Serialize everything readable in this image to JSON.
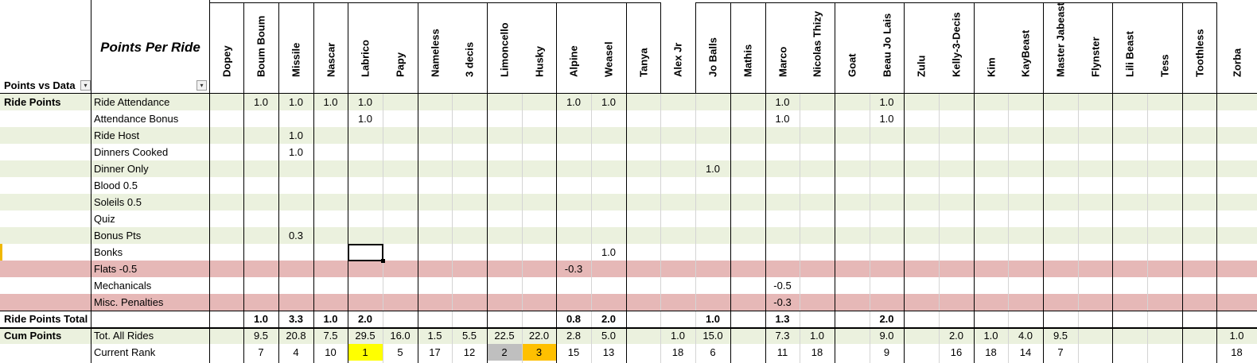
{
  "sheet": {
    "corner_label": "Points vs Data",
    "title": "Points Per Ride",
    "riders": [
      "Dopey",
      "Boum Boum",
      "Missile",
      "Nascar",
      "Labrico",
      "Papy",
      "Nameless",
      "3 decis",
      "Limoncello",
      "Husky",
      "Alpine",
      "Weasel",
      "Tanya",
      "Alex Jr",
      "Jo Balls",
      "Mathis",
      "Marco",
      "Nicolas Thizy",
      "Goat",
      "Beau Jo Lais",
      "Zulu",
      "Kelly-3-Decis",
      "Kim",
      "KayBeast",
      "Master Jabeast",
      "Flynster",
      "Lili Beast",
      "Tess",
      "Toothless",
      "Zorba"
    ],
    "rows": [
      {
        "group": "Ride Points",
        "label": "Ride Attendance",
        "style": "green",
        "values": [
          "",
          "1.0",
          "1.0",
          "1.0",
          "1.0",
          "",
          "",
          "",
          "",
          "",
          "1.0",
          "1.0",
          "",
          "",
          "",
          "",
          "1.0",
          "",
          "",
          "1.0",
          "",
          "",
          "",
          "",
          "",
          "",
          "",
          "",
          "",
          ""
        ]
      },
      {
        "group": "",
        "label": "Attendance Bonus",
        "style": "white",
        "values": [
          "",
          "",
          "",
          "",
          "1.0",
          "",
          "",
          "",
          "",
          "",
          "",
          "",
          "",
          "",
          "",
          "",
          "1.0",
          "",
          "",
          "1.0",
          "",
          "",
          "",
          "",
          "",
          "",
          "",
          "",
          "",
          ""
        ]
      },
      {
        "group": "",
        "label": "Ride Host",
        "style": "green",
        "values": [
          "",
          "",
          "1.0",
          "",
          "",
          "",
          "",
          "",
          "",
          "",
          "",
          "",
          "",
          "",
          "",
          "",
          "",
          "",
          "",
          "",
          "",
          "",
          "",
          "",
          "",
          "",
          "",
          "",
          "",
          ""
        ]
      },
      {
        "group": "",
        "label": "Dinners Cooked",
        "style": "white",
        "values": [
          "",
          "",
          "1.0",
          "",
          "",
          "",
          "",
          "",
          "",
          "",
          "",
          "",
          "",
          "",
          "",
          "",
          "",
          "",
          "",
          "",
          "",
          "",
          "",
          "",
          "",
          "",
          "",
          "",
          "",
          ""
        ]
      },
      {
        "group": "",
        "label": "Dinner Only",
        "style": "green",
        "values": [
          "",
          "",
          "",
          "",
          "",
          "",
          "",
          "",
          "",
          "",
          "",
          "",
          "",
          "",
          "1.0",
          "",
          "",
          "",
          "",
          "",
          "",
          "",
          "",
          "",
          "",
          "",
          "",
          "",
          "",
          ""
        ]
      },
      {
        "group": "",
        "label": "Blood 0.5",
        "style": "white",
        "values": [
          "",
          "",
          "",
          "",
          "",
          "",
          "",
          "",
          "",
          "",
          "",
          "",
          "",
          "",
          "",
          "",
          "",
          "",
          "",
          "",
          "",
          "",
          "",
          "",
          "",
          "",
          "",
          "",
          "",
          ""
        ]
      },
      {
        "group": "",
        "label": "Soleils 0.5",
        "style": "green",
        "values": [
          "",
          "",
          "",
          "",
          "",
          "",
          "",
          "",
          "",
          "",
          "",
          "",
          "",
          "",
          "",
          "",
          "",
          "",
          "",
          "",
          "",
          "",
          "",
          "",
          "",
          "",
          "",
          "",
          "",
          ""
        ]
      },
      {
        "group": "",
        "label": "Quiz",
        "style": "white",
        "values": [
          "",
          "",
          "",
          "",
          "",
          "",
          "",
          "",
          "",
          "",
          "",
          "",
          "",
          "",
          "",
          "",
          "",
          "",
          "",
          "",
          "",
          "",
          "",
          "",
          "",
          "",
          "",
          "",
          "",
          ""
        ]
      },
      {
        "group": "",
        "label": "Bonus Pts",
        "style": "green",
        "values": [
          "",
          "",
          "0.3",
          "",
          "",
          "",
          "",
          "",
          "",
          "",
          "",
          "",
          "",
          "",
          "",
          "",
          "",
          "",
          "",
          "",
          "",
          "",
          "",
          "",
          "",
          "",
          "",
          "",
          "",
          ""
        ]
      },
      {
        "group": "",
        "label": "Bonks",
        "style": "white",
        "values": [
          "",
          "",
          "",
          "",
          "",
          "",
          "",
          "",
          "",
          "",
          "",
          "1.0",
          "",
          "",
          "",
          "",
          "",
          "",
          "",
          "",
          "",
          "",
          "",
          "",
          "",
          "",
          "",
          "",
          "",
          ""
        ]
      },
      {
        "group": "",
        "label": "Flats -0.5",
        "style": "red",
        "values": [
          "",
          "",
          "",
          "",
          "",
          "",
          "",
          "",
          "",
          "",
          "-0.3",
          "",
          "",
          "",
          "",
          "",
          "",
          "",
          "",
          "",
          "",
          "",
          "",
          "",
          "",
          "",
          "",
          "",
          "",
          ""
        ]
      },
      {
        "group": "",
        "label": "Mechanicals",
        "style": "white",
        "values": [
          "",
          "",
          "",
          "",
          "",
          "",
          "",
          "",
          "",
          "",
          "",
          "",
          "",
          "",
          "",
          "",
          "-0.5",
          "",
          "",
          "",
          "",
          "",
          "",
          "",
          "",
          "",
          "",
          "",
          "",
          ""
        ]
      },
      {
        "group": "",
        "label": "Misc. Penalties",
        "style": "red",
        "values": [
          "",
          "",
          "",
          "",
          "",
          "",
          "",
          "",
          "",
          "",
          "",
          "",
          "",
          "",
          "",
          "",
          "-0.3",
          "",
          "",
          "",
          "",
          "",
          "",
          "",
          "",
          "",
          "",
          "",
          "",
          ""
        ]
      }
    ],
    "total_row": {
      "label": "Ride Points Total",
      "values": [
        "",
        "1.0",
        "3.3",
        "1.0",
        "2.0",
        "",
        "",
        "",
        "",
        "",
        "0.8",
        "2.0",
        "",
        "",
        "1.0",
        "",
        "1.3",
        "",
        "",
        "2.0",
        "",
        "",
        "",
        "",
        "",
        "",
        "",
        "",
        "",
        ""
      ]
    },
    "cum_rows": [
      {
        "group": "Cum Points",
        "label": "Tot. All Rides",
        "style": "green",
        "values": [
          "",
          "9.5",
          "20.8",
          "7.5",
          "29.5",
          "16.0",
          "1.5",
          "5.5",
          "22.5",
          "22.0",
          "2.8",
          "5.0",
          "",
          "1.0",
          "15.0",
          "",
          "7.3",
          "1.0",
          "",
          "9.0",
          "",
          "2.0",
          "1.0",
          "4.0",
          "9.5",
          "",
          "",
          "",
          "",
          "1.0"
        ]
      },
      {
        "group": "",
        "label": "Current Rank",
        "style": "white",
        "values": [
          "",
          "7",
          "4",
          "10",
          "1",
          "5",
          "17",
          "12",
          "2",
          "3",
          "15",
          "13",
          "",
          "18",
          "6",
          "",
          "11",
          "18",
          "",
          "9",
          "",
          "16",
          "18",
          "14",
          "7",
          "",
          "",
          "",
          "",
          "18"
        ]
      }
    ],
    "rank_highlights": {
      "gold": "#ffff00",
      "silver": "#bfbfbf",
      "bronze": "#ffc000"
    },
    "colors": {
      "green_band": "#ebf1de",
      "red_band": "#e6b8b7"
    }
  }
}
